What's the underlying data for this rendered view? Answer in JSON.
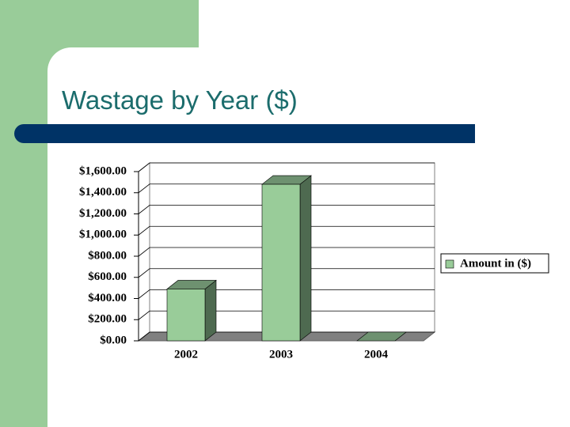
{
  "chart_data": {
    "type": "bar",
    "title": "Wastage by Year ($)",
    "categories": [
      "2002",
      "2003",
      "2004"
    ],
    "series": [
      {
        "name": "Amount in ($)",
        "color": "#99cc99",
        "values": [
          490,
          1480,
          0
        ]
      }
    ],
    "ylim": [
      0,
      1600
    ],
    "yticks": [
      {
        "value": 0,
        "label": "$0.00"
      },
      {
        "value": 200,
        "label": "$200.00"
      },
      {
        "value": 400,
        "label": "$400.00"
      },
      {
        "value": 600,
        "label": "$600.00"
      },
      {
        "value": 800,
        "label": "$800.00"
      },
      {
        "value": 1000,
        "label": "$1,000.00"
      },
      {
        "value": 1200,
        "label": "$1,200.00"
      },
      {
        "value": 1400,
        "label": "$1,400.00"
      },
      {
        "value": 1600,
        "label": "$1,600.00"
      }
    ],
    "grid": true,
    "legend": "right"
  }
}
